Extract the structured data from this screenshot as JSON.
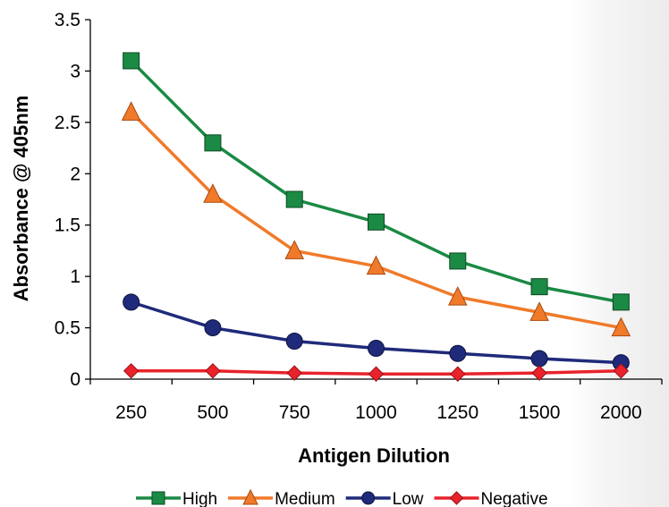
{
  "chart_data": {
    "type": "line",
    "title": "",
    "xlabel": "Antigen Dilution",
    "ylabel": "Absorbance @ 405nm",
    "categories": [
      "250",
      "500",
      "750",
      "1000",
      "1250",
      "1500",
      "2000"
    ],
    "ylim": [
      0,
      3.5
    ],
    "yticks": [
      "0",
      "0.5",
      "1",
      "1.5",
      "2",
      "2.5",
      "3",
      "3.5"
    ],
    "grid": false,
    "legend_position": "bottom",
    "series": [
      {
        "name": "High",
        "color": "#1a8a44",
        "marker": "square",
        "values": [
          3.1,
          2.3,
          1.75,
          1.53,
          1.15,
          0.9,
          0.75
        ]
      },
      {
        "name": "Medium",
        "color": "#f07a2a",
        "marker": "triangle",
        "values": [
          2.6,
          1.8,
          1.25,
          1.1,
          0.8,
          0.65,
          0.5
        ]
      },
      {
        "name": "Low",
        "color": "#1f2a7a",
        "marker": "circle",
        "values": [
          0.75,
          0.5,
          0.37,
          0.3,
          0.25,
          0.2,
          0.16
        ]
      },
      {
        "name": "Negative",
        "color": "#e8232b",
        "marker": "diamond",
        "values": [
          0.08,
          0.08,
          0.06,
          0.05,
          0.05,
          0.06,
          0.08
        ]
      }
    ]
  }
}
